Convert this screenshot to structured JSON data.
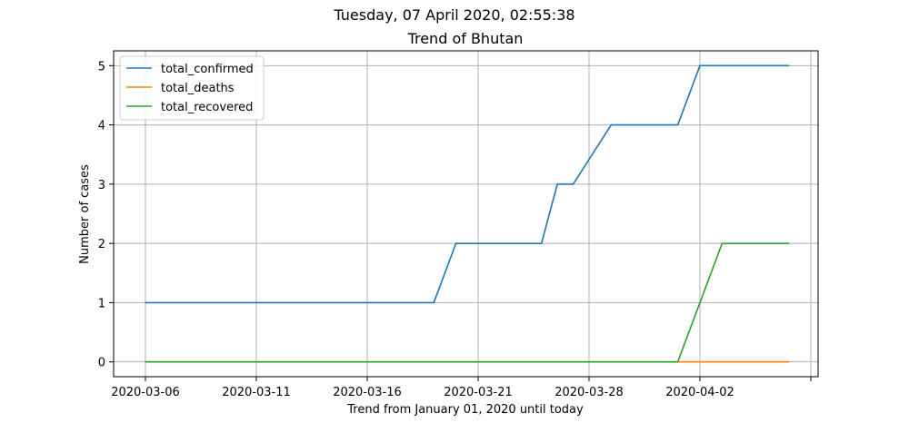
{
  "chart_data": {
    "type": "line",
    "suptitle": "Tuesday, 07 April 2020, 02:55:38",
    "title": "Trend of Bhutan",
    "xlabel": "Trend from January 01, 2020 until today",
    "ylabel": "Number of cases",
    "x_tick_labels": [
      "2020-03-06",
      "2020-03-11",
      "2020-03-16",
      "2020-03-21",
      "2020-03-28",
      "2020-04-02",
      ""
    ],
    "y_ticks": [
      0,
      1,
      2,
      3,
      4,
      5
    ],
    "ylim": [
      -0.25,
      5.25
    ],
    "grid": true,
    "legend_position": "top-left",
    "series": [
      {
        "name": "total_confirmed",
        "color": "#1f77b4",
        "points": [
          {
            "x": "2020-03-06",
            "y": 1
          },
          {
            "x": "2020-03-19",
            "y": 1
          },
          {
            "x": "2020-03-20",
            "y": 2
          },
          {
            "x": "2020-03-25",
            "y": 2
          },
          {
            "x": "2020-03-26",
            "y": 3
          },
          {
            "x": "2020-03-27",
            "y": 3
          },
          {
            "x": "2020-03-29",
            "y": 4
          },
          {
            "x": "2020-04-01",
            "y": 4
          },
          {
            "x": "2020-04-02",
            "y": 5
          },
          {
            "x": "2020-04-06",
            "y": 5
          }
        ]
      },
      {
        "name": "total_deaths",
        "color": "#ff7f0e",
        "points": [
          {
            "x": "2020-03-06",
            "y": 0
          },
          {
            "x": "2020-04-06",
            "y": 0
          }
        ]
      },
      {
        "name": "total_recovered",
        "color": "#2ca02c",
        "points": [
          {
            "x": "2020-03-06",
            "y": 0
          },
          {
            "x": "2020-04-01",
            "y": 0
          },
          {
            "x": "2020-04-03",
            "y": 2
          },
          {
            "x": "2020-04-06",
            "y": 2
          }
        ]
      }
    ]
  }
}
